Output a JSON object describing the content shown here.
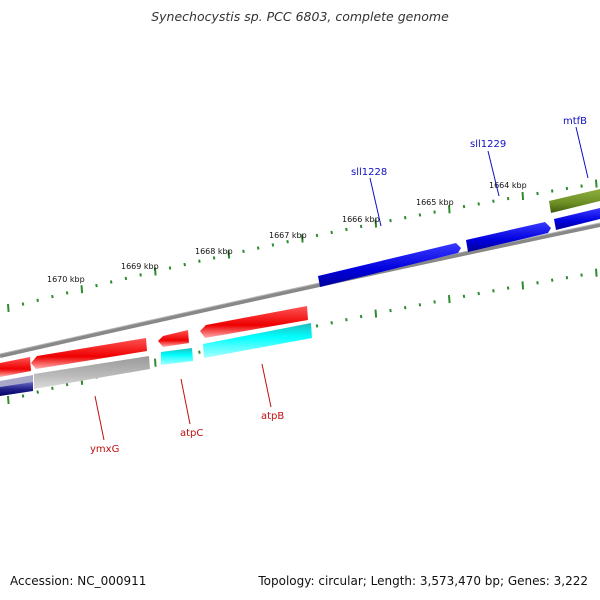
{
  "title": "Synechocystis sp. PCC 6803, complete genome",
  "footer": {
    "accession": "Accession: NC_000911",
    "summary": "Topology: circular; Length: 3,573,470 bp; Genes: 3,222"
  },
  "colors": {
    "backbone": "#888888",
    "ticks": "#2e8b2e",
    "tick_text": "#111111",
    "forward_label": "#1010c0",
    "reverse_label": "#c01010"
  },
  "scale_ticks": [
    {
      "label": "1670 kbp",
      "pos_kbp": 1670
    },
    {
      "label": "1669 kbp",
      "pos_kbp": 1669
    },
    {
      "label": "1668 kbp",
      "pos_kbp": 1668
    },
    {
      "label": "1667 kbp",
      "pos_kbp": 1667
    },
    {
      "label": "1666 kbp",
      "pos_kbp": 1666
    },
    {
      "label": "1665 kbp",
      "pos_kbp": 1665
    },
    {
      "label": "1664 kbp",
      "pos_kbp": 1664
    }
  ],
  "genes": [
    {
      "name": "sll1228",
      "strand": "forward",
      "color": "#0a0ae0",
      "labeled": true
    },
    {
      "name": "sll1229",
      "strand": "forward",
      "color": "#0a0ae0",
      "labeled": true
    },
    {
      "name": "mtfB",
      "strand": "forward",
      "color": "#6b8e23",
      "labeled": true
    },
    {
      "name": "ymxG",
      "strand": "reverse",
      "color": "#ee1111",
      "labeled": true
    },
    {
      "name": "atpC",
      "strand": "reverse",
      "color": "#ee1111",
      "labeled": true
    },
    {
      "name": "atpB",
      "strand": "reverse",
      "color": "#ee1111",
      "labeled": true
    }
  ]
}
